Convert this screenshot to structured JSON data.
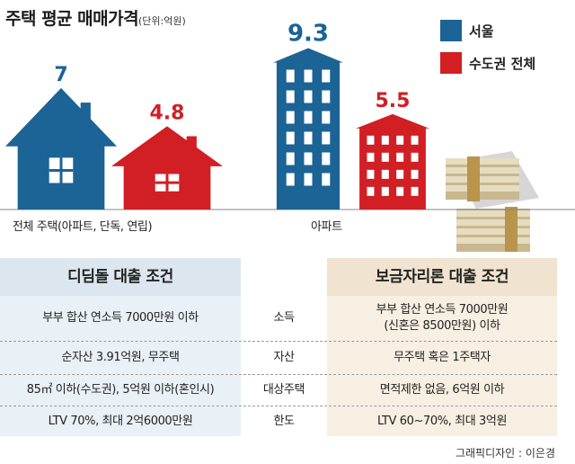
{
  "title": "주택 평균 매매가격",
  "unit": "(단위:억원)",
  "colors": {
    "seoul": "#1c6396",
    "capital": "#d11f23"
  },
  "legend": [
    {
      "label": "서울",
      "color": "#1c6396"
    },
    {
      "label": "수도권 전체",
      "color": "#d11f23"
    }
  ],
  "chart_data": {
    "type": "bar",
    "title": "주택 평균 매매가격",
    "unit": "(단위:억원)",
    "categories": [
      "전체 주택(아파트, 단독, 연립)",
      "아파트"
    ],
    "series": [
      {
        "name": "서울",
        "values": [
          7,
          9.3
        ]
      },
      {
        "name": "수도권 전체",
        "values": [
          4.8,
          5.5
        ]
      }
    ],
    "value_labels": [
      [
        "7",
        "9.3"
      ],
      [
        "4.8",
        "5.5"
      ]
    ],
    "legend_position": "top-right",
    "grid": false
  },
  "table": {
    "headers": [
      "디딤돌 대출 조건",
      "",
      "보금자리론 대출 조건"
    ],
    "rows": [
      {
        "left": "부부 합산 연소득 7000만원 이하",
        "mid": "소득",
        "right_line1": "부부 합산 연소득 7000만원",
        "right_line2": "(신혼은 8500만원) 이하"
      },
      {
        "left": "순자산 3.91억원, 무주택",
        "mid": "자산",
        "right_line1": "무주택 혹은 1주택자",
        "right_line2": ""
      },
      {
        "left": "85㎡ 이하(수도권), 5억원 이하(혼인시)",
        "mid": "대상주택",
        "right_line1": "면적제한 없음, 6억원 이하",
        "right_line2": ""
      },
      {
        "left": "LTV 70%, 최대 2억6000만원",
        "mid": "한도",
        "right_line1": "LTV 60~70%, 최대 3억원",
        "right_line2": ""
      }
    ]
  },
  "credit": "그래픽디자인 : 이은경"
}
